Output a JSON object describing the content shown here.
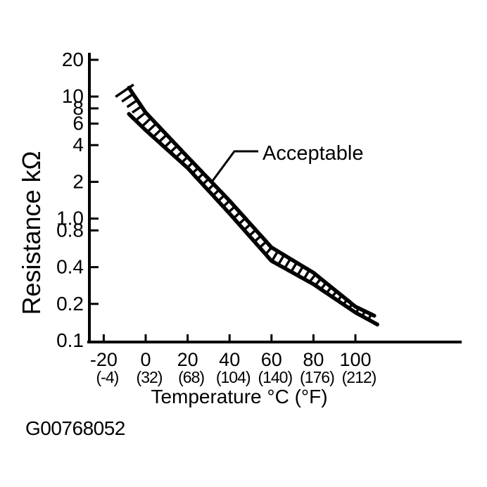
{
  "figure": {
    "code": "G00768052"
  },
  "chart_data": {
    "type": "area",
    "title": "",
    "xlabel": "Temperature °C (°F)",
    "ylabel": "Resistance kΩ",
    "x_axis": {
      "label": "Temperature °C (°F)",
      "scale": "linear",
      "range": [
        -27,
        117
      ],
      "ticks": [
        {
          "value": -20,
          "celsius": "-20",
          "fahrenheit": "(-4)"
        },
        {
          "value": 0,
          "celsius": "0",
          "fahrenheit": "(32)"
        },
        {
          "value": 20,
          "celsius": "20",
          "fahrenheit": "(68)"
        },
        {
          "value": 40,
          "celsius": "40",
          "fahrenheit": "(104)"
        },
        {
          "value": 60,
          "celsius": "60",
          "fahrenheit": "(140)"
        },
        {
          "value": 80,
          "celsius": "80",
          "fahrenheit": "(176)"
        },
        {
          "value": 100,
          "celsius": "100",
          "fahrenheit": "(212)"
        }
      ]
    },
    "y_axis": {
      "label": "Resistance kΩ",
      "scale": "log",
      "range": [
        0.1,
        20
      ],
      "ticks": [
        {
          "value": 20,
          "label": "20"
        },
        {
          "value": 10,
          "label": "10"
        },
        {
          "value": 8,
          "label": "8"
        },
        {
          "value": 6,
          "label": "6"
        },
        {
          "value": 4,
          "label": "4"
        },
        {
          "value": 2,
          "label": "2"
        },
        {
          "value": 1.0,
          "label": "1.0"
        },
        {
          "value": 0.8,
          "label": "0.8"
        },
        {
          "value": 0.4,
          "label": "0.4"
        },
        {
          "value": 0.2,
          "label": "0.2"
        },
        {
          "value": 0.1,
          "label": "0.1"
        }
      ]
    },
    "band": {
      "label": "Acceptable",
      "hatched": true,
      "x_celsius": [
        -8,
        0,
        20,
        40,
        60,
        80,
        100,
        109
      ],
      "series": [
        {
          "name": "upper_limit_kohm",
          "values": [
            11.8,
            7.4,
            3.2,
            1.4,
            0.58,
            0.36,
            0.19,
            0.16
          ]
        },
        {
          "name": "lower_limit_kohm",
          "values": [
            7.2,
            5.3,
            2.6,
            1.1,
            0.45,
            0.29,
            0.17,
            0.14
          ]
        }
      ]
    },
    "legend": "none",
    "grid": false,
    "colors": {
      "ink": "#000000",
      "paper": "#ffffff"
    }
  }
}
